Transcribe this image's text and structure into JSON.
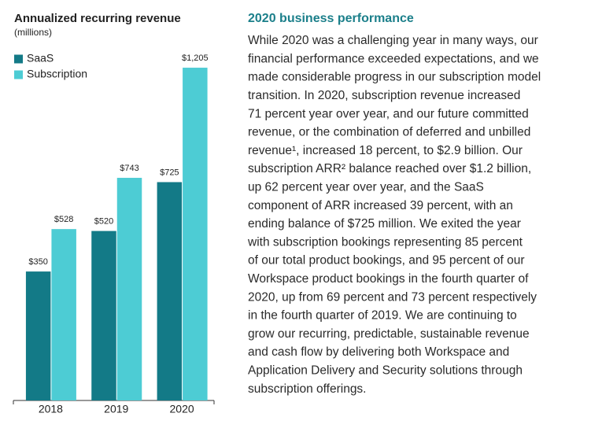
{
  "chart_data": {
    "type": "bar",
    "title": "Annualized recurring revenue",
    "subtitle": "(millions)",
    "categories": [
      "2018",
      "2019",
      "2020"
    ],
    "series": [
      {
        "name": "SaaS",
        "color": "#137a87",
        "values": [
          350,
          520,
          725
        ],
        "value_labels": [
          "$350",
          "$520",
          "$725"
        ]
      },
      {
        "name": "Subscription",
        "color": "#4dccd4",
        "values": [
          528,
          743,
          1205
        ],
        "value_labels": [
          "$528",
          "$743",
          "$1,205"
        ]
      }
    ],
    "ylim": [
      -191,
      1291
    ],
    "legend": "top-left"
  },
  "article": {
    "title": "2020 business performance",
    "lines": [
      "While 2020 was a challenging year in many ways, our",
      "financial performance exceeded expectations, and we",
      "made considerable progress in our subscription model",
      "transition. In 2020, subscription revenue increased",
      "71 percent year over year, and our future committed",
      "revenue, or the combination of deferred and unbilled",
      "revenue¹, increased 18 percent, to $2.9 billion. Our",
      "subscription ARR² balance reached over $1.2 billion,",
      "up 62 percent year over year, and the SaaS",
      "component of ARR increased 39 percent, with an",
      "ending balance of $725 million. We exited the year",
      "with subscription bookings representing 85 percent",
      "of our total product bookings, and 95 percent of our",
      "Workspace product bookings in the fourth quarter of",
      "2020, up from 69 percent and 73 percent respectively",
      "in the fourth quarter of 2019. We are continuing to",
      "grow our recurring, predictable, sustainable revenue",
      "and cash flow by delivering both Workspace and",
      "Application Delivery and Security solutions through",
      "subscription offerings."
    ]
  }
}
